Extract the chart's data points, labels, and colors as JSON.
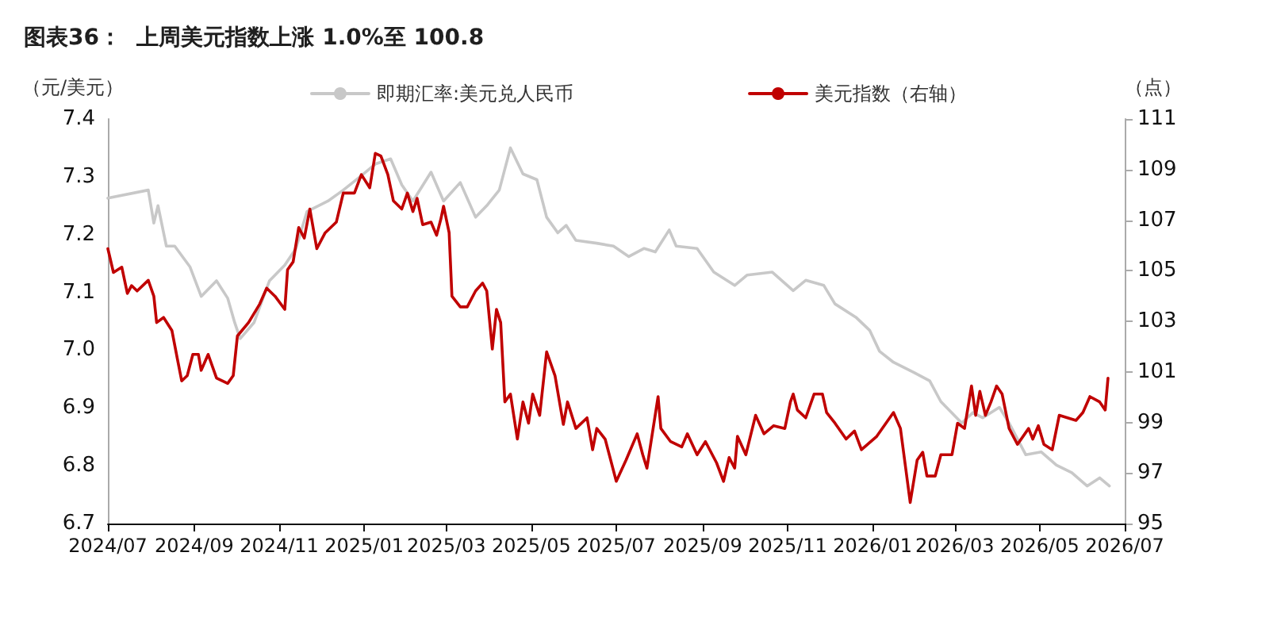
{
  "chart_data": {
    "type": "line",
    "title": "图表36：  上周美元指数上涨 1.0%至 100.8",
    "ylabel": "（元/美元）",
    "y2label": "（点）",
    "xlim": [
      "2024-07-01",
      "2026-07-01"
    ],
    "xticks": [
      {
        "value": "2024-07-01",
        "label": "2024/07"
      },
      {
        "value": "2024-09-01",
        "label": "2024/09"
      },
      {
        "value": "2024-11-01",
        "label": "2024/11"
      },
      {
        "value": "2025-01-01",
        "label": "2025/01"
      },
      {
        "value": "2025-03-01",
        "label": "2025/03"
      },
      {
        "value": "2025-05-01",
        "label": "2025/05"
      },
      {
        "value": "2025-07-01",
        "label": "2025/07"
      },
      {
        "value": "2025-09-01",
        "label": "2025/09"
      },
      {
        "value": "2025-11-01",
        "label": "2025/11"
      },
      {
        "value": "2026-01-01",
        "label": "2026/01"
      },
      {
        "value": "2026-03-01",
        "label": "2026/03"
      },
      {
        "value": "2026-05-01",
        "label": "2026/05"
      },
      {
        "value": "2026-07-01",
        "label": "2026/07"
      }
    ],
    "ylim": [
      6.7,
      7.4
    ],
    "yticks": [
      {
        "value": 6.7,
        "label": "6.7"
      },
      {
        "value": 6.8,
        "label": "6.8"
      },
      {
        "value": 6.9,
        "label": "6.9"
      },
      {
        "value": 7.0,
        "label": "7.0"
      },
      {
        "value": 7.1,
        "label": "7.1"
      },
      {
        "value": 7.2,
        "label": "7.2"
      },
      {
        "value": 7.3,
        "label": "7.3"
      },
      {
        "value": 7.4,
        "label": "7.4"
      }
    ],
    "y2lim": [
      95,
      111
    ],
    "y2ticks": [
      95,
      97,
      99,
      101,
      103,
      105,
      107,
      109,
      111
    ],
    "grid": false,
    "legend": "top",
    "marker": "none",
    "line_style": "solid",
    "series": [
      {
        "name": "即期汇率:美元兑人民币",
        "color": "#c8c8c8",
        "x": [
          "2024-07-01",
          "2024-07-30",
          "2024-08-03",
          "2024-08-06",
          "2024-08-12",
          "2024-08-18",
          "2024-08-29",
          "2024-09-06",
          "2024-09-17",
          "2024-09-25",
          "2024-09-30",
          "2024-10-04",
          "2024-10-14",
          "2024-10-25",
          "2024-11-05",
          "2024-11-13",
          "2024-11-21",
          "2024-12-06",
          "2024-12-17",
          "2024-12-29",
          "2025-01-09",
          "2025-01-20",
          "2025-01-28",
          "2025-02-05",
          "2025-02-18",
          "2025-02-27",
          "2025-03-11",
          "2025-03-22",
          "2025-03-30",
          "2025-04-08",
          "2025-04-16",
          "2025-04-25",
          "2025-05-05",
          "2025-05-12",
          "2025-05-20",
          "2025-05-26",
          "2025-06-02",
          "2025-06-17",
          "2025-06-29",
          "2025-07-10",
          "2025-07-21",
          "2025-07-29",
          "2025-08-08",
          "2025-08-13",
          "2025-08-28",
          "2025-09-09",
          "2025-09-24",
          "2025-10-03",
          "2025-10-21",
          "2025-11-05",
          "2025-11-14",
          "2025-11-27",
          "2025-12-05",
          "2025-12-20",
          "2025-12-30",
          "2026-01-06",
          "2026-01-16",
          "2026-01-31",
          "2026-02-11",
          "2026-02-19",
          "2026-03-06",
          "2026-03-14",
          "2026-03-21",
          "2026-04-02",
          "2026-04-09",
          "2026-04-21",
          "2026-05-02",
          "2026-05-13",
          "2026-05-24",
          "2026-06-04",
          "2026-06-13",
          "2026-06-20"
        ],
        "values": [
          7.263,
          7.277,
          7.22,
          7.25,
          7.18,
          7.18,
          7.144,
          7.093,
          7.12,
          7.09,
          7.048,
          7.02,
          7.048,
          7.12,
          7.147,
          7.176,
          7.24,
          7.258,
          7.277,
          7.3,
          7.322,
          7.331,
          7.286,
          7.258,
          7.308,
          7.258,
          7.29,
          7.23,
          7.25,
          7.277,
          7.35,
          7.305,
          7.295,
          7.23,
          7.203,
          7.216,
          7.19,
          7.185,
          7.18,
          7.162,
          7.176,
          7.17,
          7.208,
          7.18,
          7.176,
          7.135,
          7.112,
          7.13,
          7.135,
          7.103,
          7.121,
          7.112,
          7.08,
          7.057,
          7.034,
          6.998,
          6.979,
          6.961,
          6.947,
          6.911,
          6.874,
          6.892,
          6.883,
          6.901,
          6.874,
          6.819,
          6.824,
          6.801,
          6.788,
          6.765,
          6.779,
          6.765
        ]
      },
      {
        "name": "美元指数（右轴）",
        "color": "#c00000",
        "axis": "y2",
        "x": [
          "2024-07-01",
          "2024-07-05",
          "2024-07-11",
          "2024-07-15",
          "2024-07-18",
          "2024-07-22",
          "2024-07-30",
          "2024-08-03",
          "2024-08-05",
          "2024-08-10",
          "2024-08-16",
          "2024-08-20",
          "2024-08-23",
          "2024-08-27",
          "2024-08-31",
          "2024-09-04",
          "2024-09-06",
          "2024-09-11",
          "2024-09-17",
          "2024-09-25",
          "2024-09-29",
          "2024-10-02",
          "2024-10-10",
          "2024-10-18",
          "2024-10-23",
          "2024-10-29",
          "2024-11-05",
          "2024-11-07",
          "2024-11-11",
          "2024-11-15",
          "2024-11-19",
          "2024-11-23",
          "2024-11-28",
          "2024-12-04",
          "2024-12-12",
          "2024-12-17",
          "2024-12-25",
          "2024-12-30",
          "2025-01-05",
          "2025-01-09",
          "2025-01-13",
          "2025-01-18",
          "2025-01-22",
          "2025-01-28",
          "2025-02-01",
          "2025-02-05",
          "2025-02-08",
          "2025-02-12",
          "2025-02-18",
          "2025-02-22",
          "2025-02-25",
          "2025-02-27",
          "2025-03-03",
          "2025-03-05",
          "2025-03-11",
          "2025-03-16",
          "2025-03-22",
          "2025-03-27",
          "2025-03-30",
          "2025-04-03",
          "2025-04-06",
          "2025-04-09",
          "2025-04-12",
          "2025-04-16",
          "2025-04-21",
          "2025-04-25",
          "2025-04-29",
          "2025-05-02",
          "2025-05-07",
          "2025-05-12",
          "2025-05-18",
          "2025-05-24",
          "2025-05-27",
          "2025-06-02",
          "2025-06-10",
          "2025-06-14",
          "2025-06-17",
          "2025-06-23",
          "2025-07-01",
          "2025-07-08",
          "2025-07-16",
          "2025-07-20",
          "2025-07-23",
          "2025-07-31",
          "2025-08-02",
          "2025-08-09",
          "2025-08-17",
          "2025-08-21",
          "2025-08-28",
          "2025-09-03",
          "2025-09-11",
          "2025-09-16",
          "2025-09-20",
          "2025-09-24",
          "2025-09-26",
          "2025-10-02",
          "2025-10-09",
          "2025-10-15",
          "2025-10-22",
          "2025-10-30",
          "2025-11-03",
          "2025-11-05",
          "2025-11-08",
          "2025-11-14",
          "2025-11-20",
          "2025-11-26",
          "2025-11-29",
          "2025-12-05",
          "2025-12-13",
          "2025-12-19",
          "2025-12-24",
          "2026-01-04",
          "2026-01-12",
          "2026-01-16",
          "2026-01-21",
          "2026-01-25",
          "2026-01-28",
          "2026-02-02",
          "2026-02-06",
          "2026-02-09",
          "2026-02-15",
          "2026-02-19",
          "2026-02-27",
          "2026-03-03",
          "2026-03-08",
          "2026-03-13",
          "2026-03-16",
          "2026-03-19",
          "2026-03-23",
          "2026-03-27",
          "2026-03-31",
          "2026-04-04",
          "2026-04-09",
          "2026-04-15",
          "2026-04-23",
          "2026-04-26",
          "2026-04-30",
          "2026-05-04",
          "2026-05-10",
          "2026-05-15",
          "2026-05-21",
          "2026-05-27",
          "2026-06-01",
          "2026-06-06",
          "2026-06-13",
          "2026-06-17",
          "2026-06-19"
        ],
        "values": [
          105.87,
          104.93,
          105.14,
          104.1,
          104.41,
          104.2,
          104.62,
          103.99,
          102.95,
          103.15,
          102.63,
          101.48,
          100.64,
          100.85,
          101.69,
          101.69,
          101.06,
          101.69,
          100.75,
          100.54,
          100.85,
          102.42,
          102.95,
          103.68,
          104.31,
          103.99,
          103.47,
          105.04,
          105.35,
          106.71,
          106.29,
          107.44,
          105.87,
          106.5,
          106.92,
          108.07,
          108.07,
          108.8,
          108.28,
          109.64,
          109.54,
          108.8,
          107.76,
          107.44,
          108.07,
          107.34,
          107.86,
          106.82,
          106.92,
          106.4,
          107.03,
          107.55,
          106.5,
          103.99,
          103.57,
          103.57,
          104.2,
          104.51,
          104.2,
          101.9,
          103.47,
          102.95,
          99.81,
          100.12,
          98.34,
          99.81,
          98.97,
          100.12,
          99.28,
          101.79,
          100.85,
          98.92,
          99.81,
          98.76,
          99.18,
          97.92,
          98.76,
          98.34,
          96.67,
          97.51,
          98.55,
          97.72,
          97.19,
          100.02,
          98.76,
          98.24,
          98.03,
          98.55,
          97.72,
          98.24,
          97.4,
          96.67,
          97.61,
          97.19,
          98.45,
          97.72,
          99.28,
          98.55,
          98.87,
          98.76,
          99.81,
          100.12,
          99.49,
          99.18,
          100.12,
          100.12,
          99.39,
          98.97,
          98.34,
          98.66,
          97.92,
          98.45,
          99.08,
          99.39,
          98.76,
          97.09,
          95.83,
          97.51,
          97.82,
          96.88,
          96.88,
          97.72,
          97.72,
          98.97,
          98.76,
          100.44,
          99.28,
          100.23,
          99.28,
          99.81,
          100.44,
          100.12,
          98.76,
          98.13,
          98.76,
          98.34,
          98.87,
          98.13,
          97.92,
          99.28,
          99.18,
          99.08,
          99.39,
          100.02,
          99.81,
          99.49,
          100.75
        ]
      }
    ]
  }
}
